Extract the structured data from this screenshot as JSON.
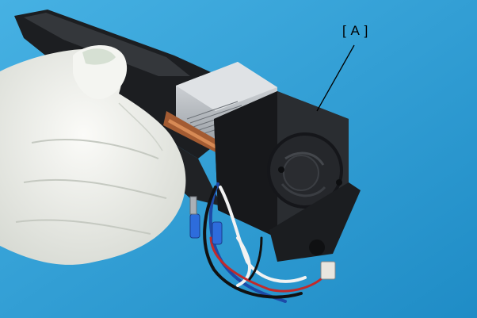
{
  "photo": {
    "subject_parts": [
      "gloved-hand",
      "black-plastic-bracket",
      "heatsink",
      "cooling-fan",
      "cable-harness",
      "connector"
    ],
    "colors": {
      "background": "#2f9fd6",
      "plastic": "#1f2124",
      "glove": "#eef0ec",
      "heatsink": "#c8ccd0",
      "fan_hub": "#2a2c30"
    }
  },
  "callout": {
    "label": "[ A ]"
  }
}
